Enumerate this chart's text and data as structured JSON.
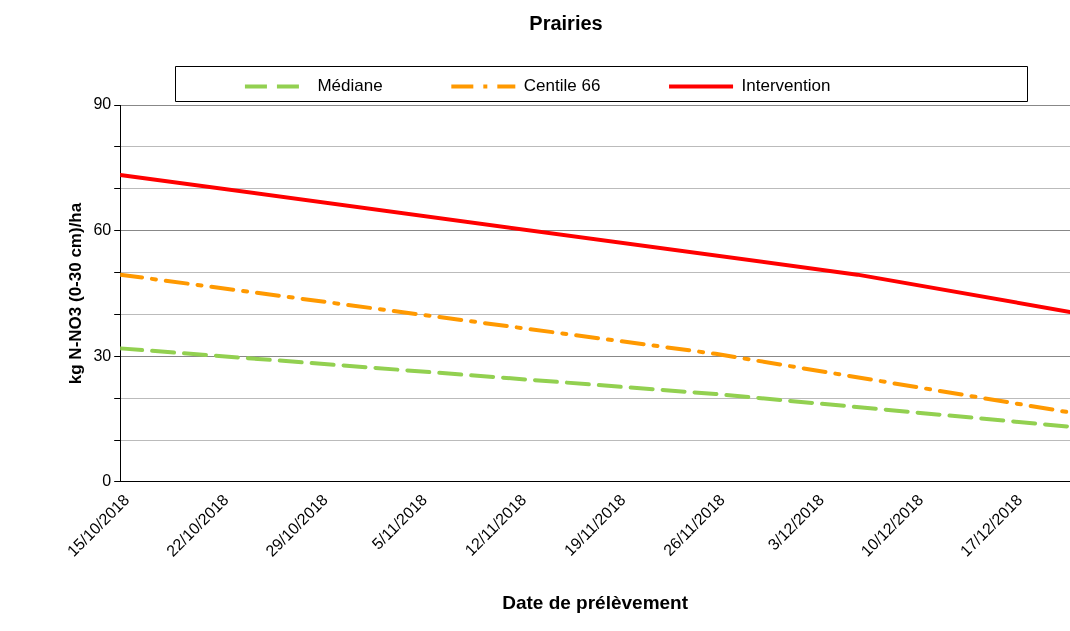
{
  "chart_data": {
    "type": "line",
    "title": "Prairies",
    "xlabel": "Date de prélèvement",
    "ylabel": "kg N-NO3 (0-30 cm)/ha",
    "xlim": [
      "2018-10-15",
      "2018-12-21"
    ],
    "xticks": [
      {
        "value": "2018-10-15",
        "label": "15/10/2018"
      },
      {
        "value": "2018-10-22",
        "label": "22/10/2018"
      },
      {
        "value": "2018-10-29",
        "label": "29/10/2018"
      },
      {
        "value": "2018-11-05",
        "label": "5/11/2018"
      },
      {
        "value": "2018-11-12",
        "label": "12/11/2018"
      },
      {
        "value": "2018-11-19",
        "label": "19/11/2018"
      },
      {
        "value": "2018-11-26",
        "label": "26/11/2018"
      },
      {
        "value": "2018-12-03",
        "label": "3/12/2018"
      },
      {
        "value": "2018-12-10",
        "label": "10/12/2018"
      },
      {
        "value": "2018-12-17",
        "label": "17/12/2018"
      }
    ],
    "ylim": [
      0,
      90
    ],
    "yticks": [
      0,
      {
        "value": 10,
        "label": null
      },
      {
        "value": 20,
        "label": null
      },
      30,
      {
        "value": 40,
        "label": null
      },
      {
        "value": 50,
        "label": null
      },
      60,
      {
        "value": 70,
        "label": null
      },
      {
        "value": 80,
        "label": null
      },
      90
    ],
    "grid": "y",
    "legend": "top",
    "marker": "none",
    "series": [
      {
        "name": "Médiane",
        "color": "#92d050",
        "line_style": "dashed",
        "x": [
          "2018-10-15",
          "2018-11-26",
          "2018-12-21"
        ],
        "values": [
          31.9,
          21,
          13.2
        ]
      },
      {
        "name": "Centile 66",
        "color": "#ff9900",
        "line_style": "dashdot",
        "x": [
          "2018-10-15",
          "2018-11-26",
          "2018-12-21"
        ],
        "values": [
          49.5,
          30.6,
          16.6
        ]
      },
      {
        "name": "Intervention",
        "color": "#ff0000",
        "line_style": "solid",
        "x": [
          "2018-10-15",
          "2018-12-06",
          "2018-12-21"
        ],
        "values": [
          73.3,
          49.5,
          40.6
        ]
      }
    ]
  }
}
